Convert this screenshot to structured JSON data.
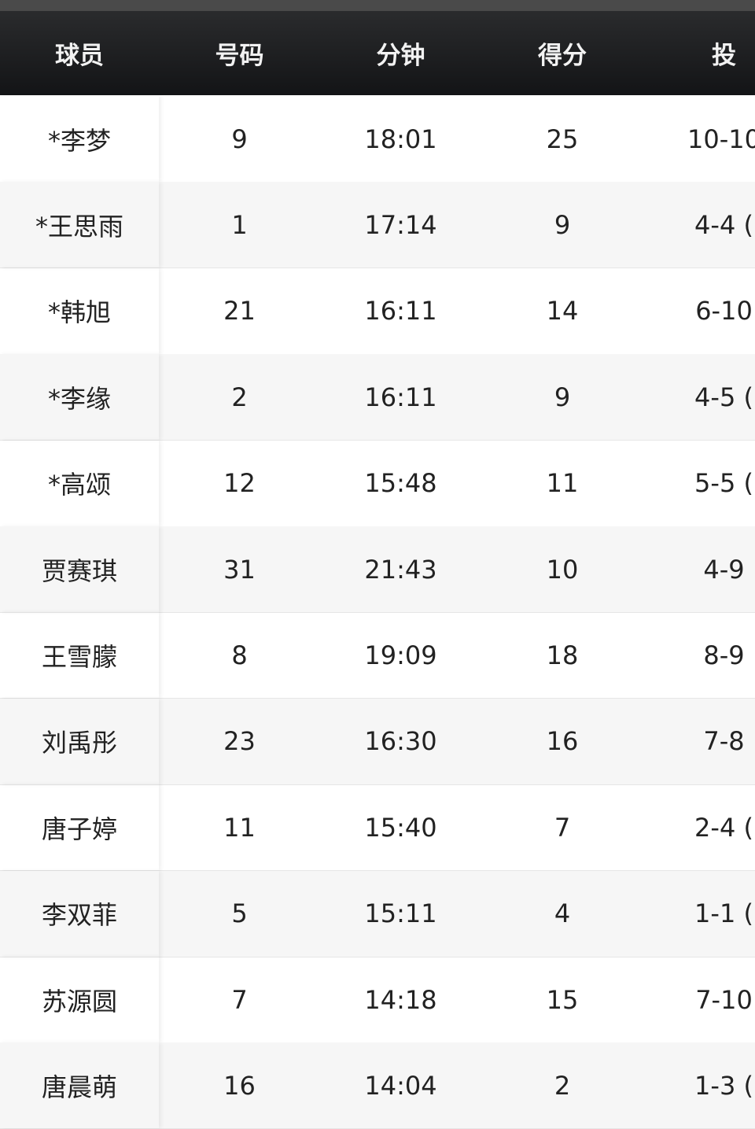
{
  "table": {
    "header": [
      "球员",
      "号码",
      "分钟",
      "得分",
      "投"
    ],
    "rows": [
      [
        "*李梦",
        "9",
        "18:01",
        "25",
        "10-10"
      ],
      [
        "*王思雨",
        "1",
        "17:14",
        "9",
        "4-4 ("
      ],
      [
        "*韩旭",
        "21",
        "16:11",
        "14",
        "6-10"
      ],
      [
        "*李缘",
        "2",
        "16:11",
        "9",
        "4-5 ("
      ],
      [
        "*高颂",
        "12",
        "15:48",
        "11",
        "5-5 ("
      ],
      [
        "贾赛琪",
        "31",
        "21:43",
        "10",
        "4-9"
      ],
      [
        "王雪朦",
        "8",
        "19:09",
        "18",
        "8-9"
      ],
      [
        "刘禹彤",
        "23",
        "16:30",
        "16",
        "7-8"
      ],
      [
        "唐子婷",
        "11",
        "15:40",
        "7",
        "2-4 ("
      ],
      [
        "李双菲",
        "5",
        "15:11",
        "4",
        "1-1 ("
      ],
      [
        "苏源圆",
        "7",
        "14:18",
        "15",
        "7-10"
      ],
      [
        "唐晨萌",
        "16",
        "14:04",
        "2",
        "1-3 ("
      ]
    ]
  }
}
